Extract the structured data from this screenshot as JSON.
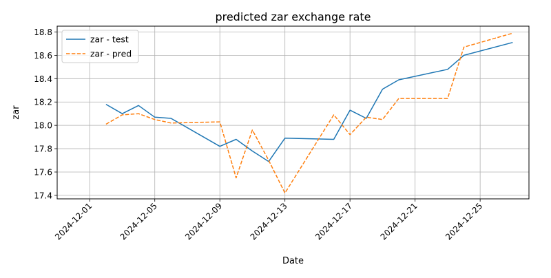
{
  "chart_data": {
    "type": "line",
    "title": "predicted zar exchange rate",
    "xlabel": "Date",
    "ylabel": "zar",
    "x_ticks": [
      "2024-12-01",
      "2024-12-05",
      "2024-12-09",
      "2024-12-13",
      "2024-12-17",
      "2024-12-21",
      "2024-12-25"
    ],
    "y_ticks": [
      17.4,
      17.6,
      17.8,
      18.0,
      18.2,
      18.4,
      18.6,
      18.8
    ],
    "xlim": [
      "2024-11-29",
      "2024-12-28"
    ],
    "ylim": [
      17.37,
      18.85
    ],
    "grid": true,
    "legend_position": "top-left",
    "series": [
      {
        "name": "zar - test",
        "color": "#1f77b4",
        "style": "solid",
        "points": [
          [
            "2024-12-02",
            18.18
          ],
          [
            "2024-12-03",
            18.1
          ],
          [
            "2024-12-04",
            18.17
          ],
          [
            "2024-12-05",
            18.07
          ],
          [
            "2024-12-06",
            18.06
          ],
          [
            "2024-12-09",
            17.82
          ],
          [
            "2024-12-10",
            17.88
          ],
          [
            "2024-12-11",
            17.78
          ],
          [
            "2024-12-12",
            17.69
          ],
          [
            "2024-12-13",
            17.89
          ],
          [
            "2024-12-16",
            17.88
          ],
          [
            "2024-12-17",
            18.13
          ],
          [
            "2024-12-18",
            18.06
          ],
          [
            "2024-12-19",
            18.31
          ],
          [
            "2024-12-20",
            18.39
          ],
          [
            "2024-12-23",
            18.48
          ],
          [
            "2024-12-24",
            18.6
          ],
          [
            "2024-12-27",
            18.71
          ]
        ]
      },
      {
        "name": "zar - pred",
        "color": "#ff7f0e",
        "style": "dashed",
        "points": [
          [
            "2024-12-02",
            18.01
          ],
          [
            "2024-12-03",
            18.09
          ],
          [
            "2024-12-04",
            18.1
          ],
          [
            "2024-12-05",
            18.05
          ],
          [
            "2024-12-06",
            18.02
          ],
          [
            "2024-12-09",
            18.03
          ],
          [
            "2024-12-10",
            17.55
          ],
          [
            "2024-12-11",
            17.96
          ],
          [
            "2024-12-12",
            17.7
          ],
          [
            "2024-12-13",
            17.42
          ],
          [
            "2024-12-16",
            18.09
          ],
          [
            "2024-12-17",
            17.92
          ],
          [
            "2024-12-18",
            18.07
          ],
          [
            "2024-12-19",
            18.05
          ],
          [
            "2024-12-20",
            18.23
          ],
          [
            "2024-12-23",
            18.23
          ],
          [
            "2024-12-24",
            18.67
          ],
          [
            "2024-12-27",
            18.79
          ]
        ]
      }
    ]
  }
}
